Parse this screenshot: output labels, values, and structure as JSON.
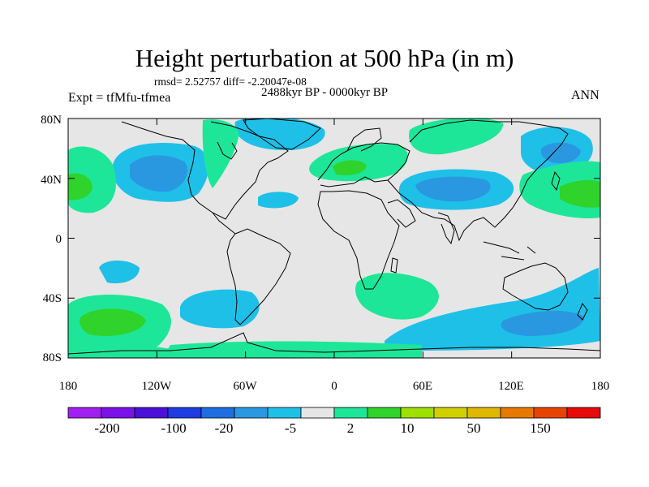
{
  "title": "Height perturbation at 500 hPa (in m)",
  "stats_text": "rmsd= 2.52757 diff= -2.20047e-08",
  "period_text": "2488kyr BP - 0000kyr BP",
  "experiment_text": "Expt = tfMfu-tfmea",
  "season_text": "ANN",
  "lat_labels": [
    "80N",
    "40N",
    "0",
    "40S",
    "80S"
  ],
  "lon_labels": [
    "180",
    "120W",
    "60W",
    "0",
    "60E",
    "120E",
    "180"
  ],
  "colorbar": {
    "colors": [
      "#a020f0",
      "#7b12e8",
      "#4a10d8",
      "#1e3ce0",
      "#1e6ee0",
      "#2a98e0",
      "#1ec0e8",
      "#e6e6e6",
      "#1ee698",
      "#30d22c",
      "#9ee000",
      "#d0d000",
      "#e0b800",
      "#e67a00",
      "#e64400",
      "#e60a0a"
    ],
    "labels": [
      "-200",
      "-100",
      "-20",
      "-5",
      "2",
      "10",
      "50",
      "150"
    ]
  },
  "map_background_color": "#e6e6e6",
  "coastline_color": "#000000"
}
